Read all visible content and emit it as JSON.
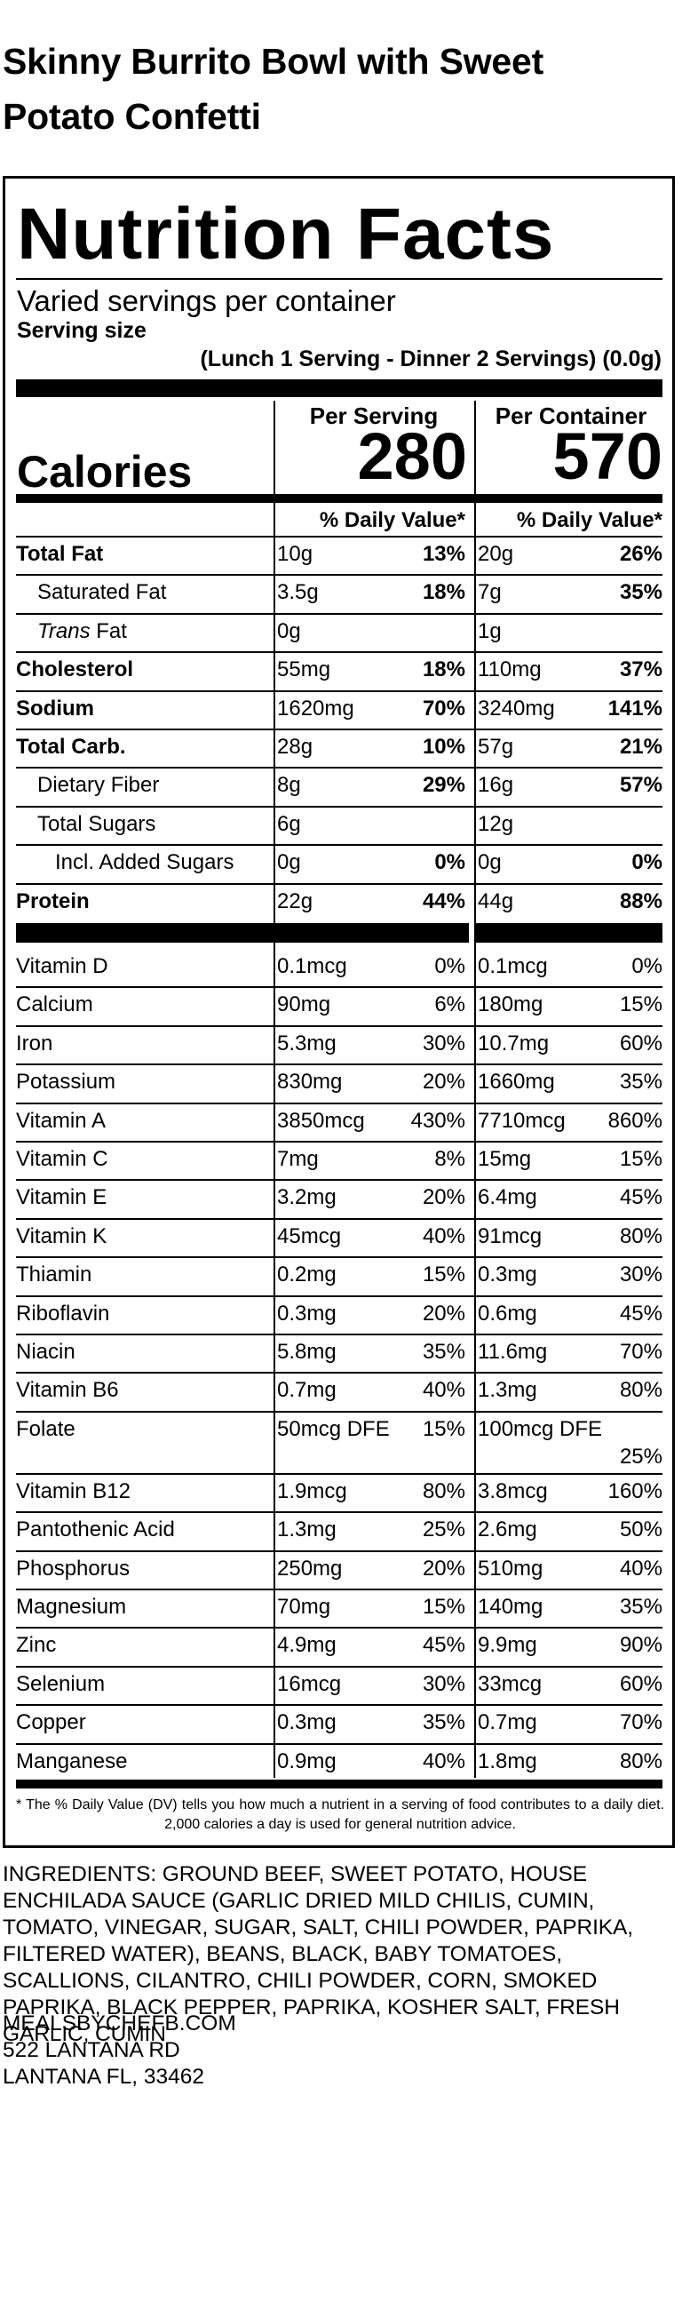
{
  "product_title": "Skinny Burrito Bowl with Sweet Potato Confetti",
  "label": {
    "heading": "Nutrition Facts",
    "servings_per_container": "Varied servings per container",
    "serving_size_label": "Serving size",
    "serving_size_value": "(Lunch 1 Serving - Dinner 2 Servings) (0.0g)",
    "per_serving_label": "Per Serving",
    "per_container_label": "Per Container",
    "calories_label": "Calories",
    "calories_per_serving": "280",
    "calories_per_container": "570",
    "dv_header": "% Daily Value*",
    "nutrients": [
      {
        "name": "Total Fat",
        "s_amt": "10g",
        "s_dv": "13%",
        "c_amt": "20g",
        "c_dv": "26%"
      },
      {
        "name": "Saturated Fat",
        "s_amt": "3.5g",
        "s_dv": "18%",
        "c_amt": "7g",
        "c_dv": "35%"
      },
      {
        "name_italic": "Trans",
        "name_rest": " Fat",
        "s_amt": "0g",
        "s_dv": "",
        "c_amt": "1g",
        "c_dv": ""
      },
      {
        "name": "Cholesterol",
        "s_amt": "55mg",
        "s_dv": "18%",
        "c_amt": "110mg",
        "c_dv": "37%"
      },
      {
        "name": "Sodium",
        "s_amt": "1620mg",
        "s_dv": "70%",
        "c_amt": "3240mg",
        "c_dv": "141%"
      },
      {
        "name": "Total Carb.",
        "s_amt": "28g",
        "s_dv": "10%",
        "c_amt": "57g",
        "c_dv": "21%"
      },
      {
        "name": "Dietary Fiber",
        "s_amt": "8g",
        "s_dv": "29%",
        "c_amt": "16g",
        "c_dv": "57%"
      },
      {
        "name": "Total Sugars",
        "s_amt": "6g",
        "s_dv": "",
        "c_amt": "12g",
        "c_dv": ""
      },
      {
        "name": "Incl. Added Sugars",
        "s_amt": "0g",
        "s_dv": "0%",
        "c_amt": "0g",
        "c_dv": "0%"
      },
      {
        "name": "Protein",
        "s_amt": "22g",
        "s_dv": "44%",
        "c_amt": "44g",
        "c_dv": "88%"
      }
    ],
    "vitamins": [
      {
        "name": "Vitamin D",
        "s_amt": "0.1mcg",
        "s_dv": "0%",
        "c_amt": "0.1mcg",
        "c_dv": "0%"
      },
      {
        "name": "Calcium",
        "s_amt": "90mg",
        "s_dv": "6%",
        "c_amt": "180mg",
        "c_dv": "15%"
      },
      {
        "name": "Iron",
        "s_amt": "5.3mg",
        "s_dv": "30%",
        "c_amt": "10.7mg",
        "c_dv": "60%"
      },
      {
        "name": "Potassium",
        "s_amt": "830mg",
        "s_dv": "20%",
        "c_amt": "1660mg",
        "c_dv": "35%"
      },
      {
        "name": "Vitamin A",
        "s_amt": "3850mcg",
        "s_dv": "430%",
        "c_amt": "7710mcg",
        "c_dv": "860%"
      },
      {
        "name": "Vitamin C",
        "s_amt": "7mg",
        "s_dv": "8%",
        "c_amt": "15mg",
        "c_dv": "15%"
      },
      {
        "name": "Vitamin E",
        "s_amt": "3.2mg",
        "s_dv": "20%",
        "c_amt": "6.4mg",
        "c_dv": "45%"
      },
      {
        "name": "Vitamin K",
        "s_amt": "45mcg",
        "s_dv": "40%",
        "c_amt": "91mcg",
        "c_dv": "80%"
      },
      {
        "name": "Thiamin",
        "s_amt": "0.2mg",
        "s_dv": "15%",
        "c_amt": "0.3mg",
        "c_dv": "30%"
      },
      {
        "name": "Riboflavin",
        "s_amt": "0.3mg",
        "s_dv": "20%",
        "c_amt": "0.6mg",
        "c_dv": "45%"
      },
      {
        "name": "Niacin",
        "s_amt": "5.8mg",
        "s_dv": "35%",
        "c_amt": "11.6mg",
        "c_dv": "70%"
      },
      {
        "name": "Vitamin B6",
        "s_amt": "0.7mg",
        "s_dv": "40%",
        "c_amt": "1.3mg",
        "c_dv": "80%"
      },
      {
        "name": "Folate",
        "s_amt": "50mcg DFE",
        "s_dv": "15%",
        "c_amt": "100mcg DFE",
        "c_dv": "25%"
      },
      {
        "name": "Vitamin B12",
        "s_amt": "1.9mcg",
        "s_dv": "80%",
        "c_amt": "3.8mcg",
        "c_dv": "160%"
      },
      {
        "name": "Pantothenic Acid",
        "s_amt": "1.3mg",
        "s_dv": "25%",
        "c_amt": "2.6mg",
        "c_dv": "50%"
      },
      {
        "name": "Phosphorus",
        "s_amt": "250mg",
        "s_dv": "20%",
        "c_amt": "510mg",
        "c_dv": "40%"
      },
      {
        "name": "Magnesium",
        "s_amt": "70mg",
        "s_dv": "15%",
        "c_amt": "140mg",
        "c_dv": "35%"
      },
      {
        "name": "Zinc",
        "s_amt": "4.9mg",
        "s_dv": "45%",
        "c_amt": "9.9mg",
        "c_dv": "90%"
      },
      {
        "name": "Selenium",
        "s_amt": "16mcg",
        "s_dv": "30%",
        "c_amt": "33mcg",
        "c_dv": "60%"
      },
      {
        "name": "Copper",
        "s_amt": "0.3mg",
        "s_dv": "35%",
        "c_amt": "0.7mg",
        "c_dv": "70%"
      },
      {
        "name": "Manganese",
        "s_amt": "0.9mg",
        "s_dv": "40%",
        "c_amt": "1.8mg",
        "c_dv": "80%"
      }
    ],
    "footnote": "* The % Daily Value (DV) tells you how much a nutrient in a serving of food contributes to a daily diet. 2,000 calories a day is used for general nutrition advice."
  },
  "ingredients": "INGREDIENTS: GROUND BEEF, SWEET POTATO, HOUSE ENCHILADA SAUCE (GARLIC DRIED MILD CHILIS, CUMIN, TOMATO, VINEGAR, SUGAR, SALT, CHILI POWDER, PAPRIKA, FILTERED WATER), BEANS, BLACK, BABY TOMATOES, SCALLIONS, CILANTRO, CHILI POWDER, CORN, SMOKED PAPRIKA, BLACK PEPPER, PAPRIKA, KOSHER SALT, FRESH GARLIC, CUMIN",
  "contact": {
    "website": "MEALSBYCHEFB.COM",
    "address_line1": "522 LANTANA RD",
    "address_line2": "LANTANA FL, 33462"
  }
}
